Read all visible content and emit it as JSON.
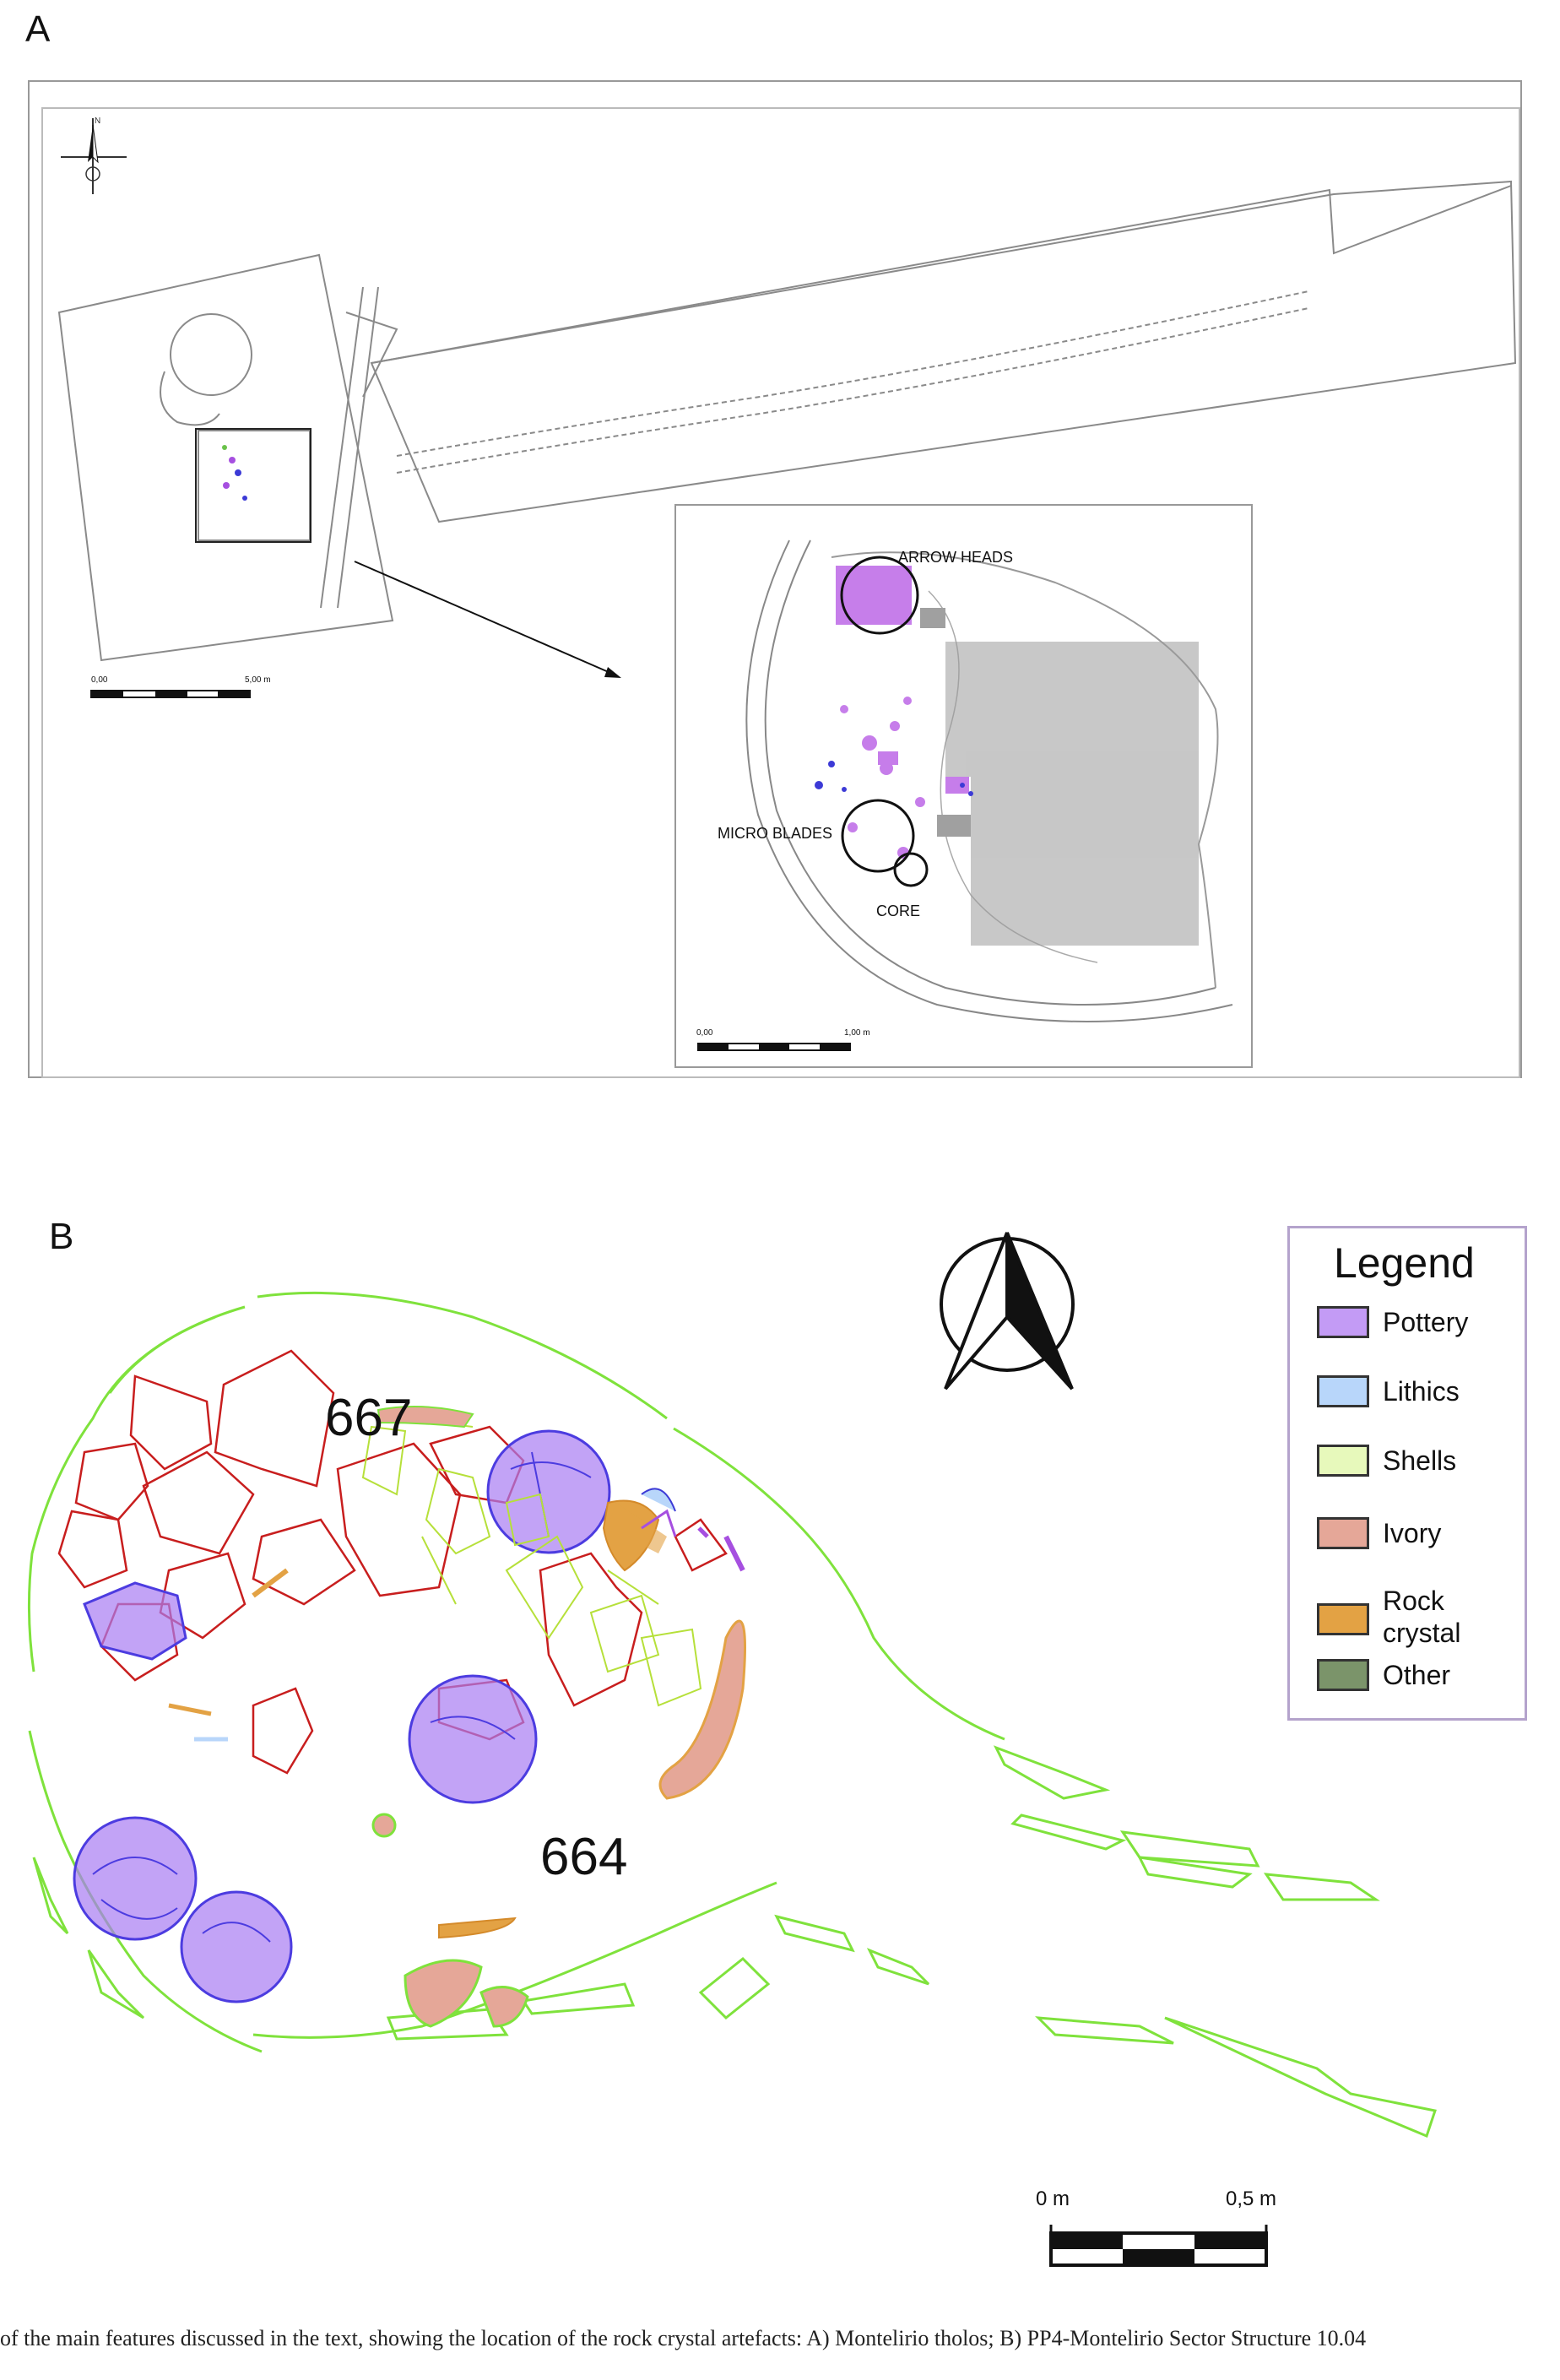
{
  "panel_a": {
    "letter": "A",
    "callouts": {
      "arrow_heads": "ARROW HEADS",
      "micro_blades": "MICRO BLADES",
      "core": "CORE"
    },
    "scale_main": {
      "start": "0,00",
      "end": "5,00 m"
    },
    "scale_inset": {
      "start": "0,00",
      "end": "1,00 m"
    },
    "north_mark": "N"
  },
  "panel_b": {
    "letter": "B",
    "labels": {
      "structure_667": "667",
      "structure_664": "664"
    },
    "legend": {
      "title": "Legend",
      "items": [
        {
          "label": "Pottery",
          "color": "#c39bf5"
        },
        {
          "label": "Lithics",
          "color": "#b8d6fa"
        },
        {
          "label": "Shells",
          "color": "#e7f9bb"
        },
        {
          "label": "Ivory",
          "color": "#e5a798"
        },
        {
          "label": "Rock\ncrystal",
          "color": "#e3a244"
        },
        {
          "label": "Other",
          "color": "#7b946a"
        }
      ]
    },
    "scale": {
      "start": "0 m",
      "end": "0,5 m"
    }
  },
  "caption": "of the main features discussed in the text, showing the location of the rock crystal artefacts: A) Montelirio tholos; B) PP4-Montelirio Sector Structure 10.04"
}
